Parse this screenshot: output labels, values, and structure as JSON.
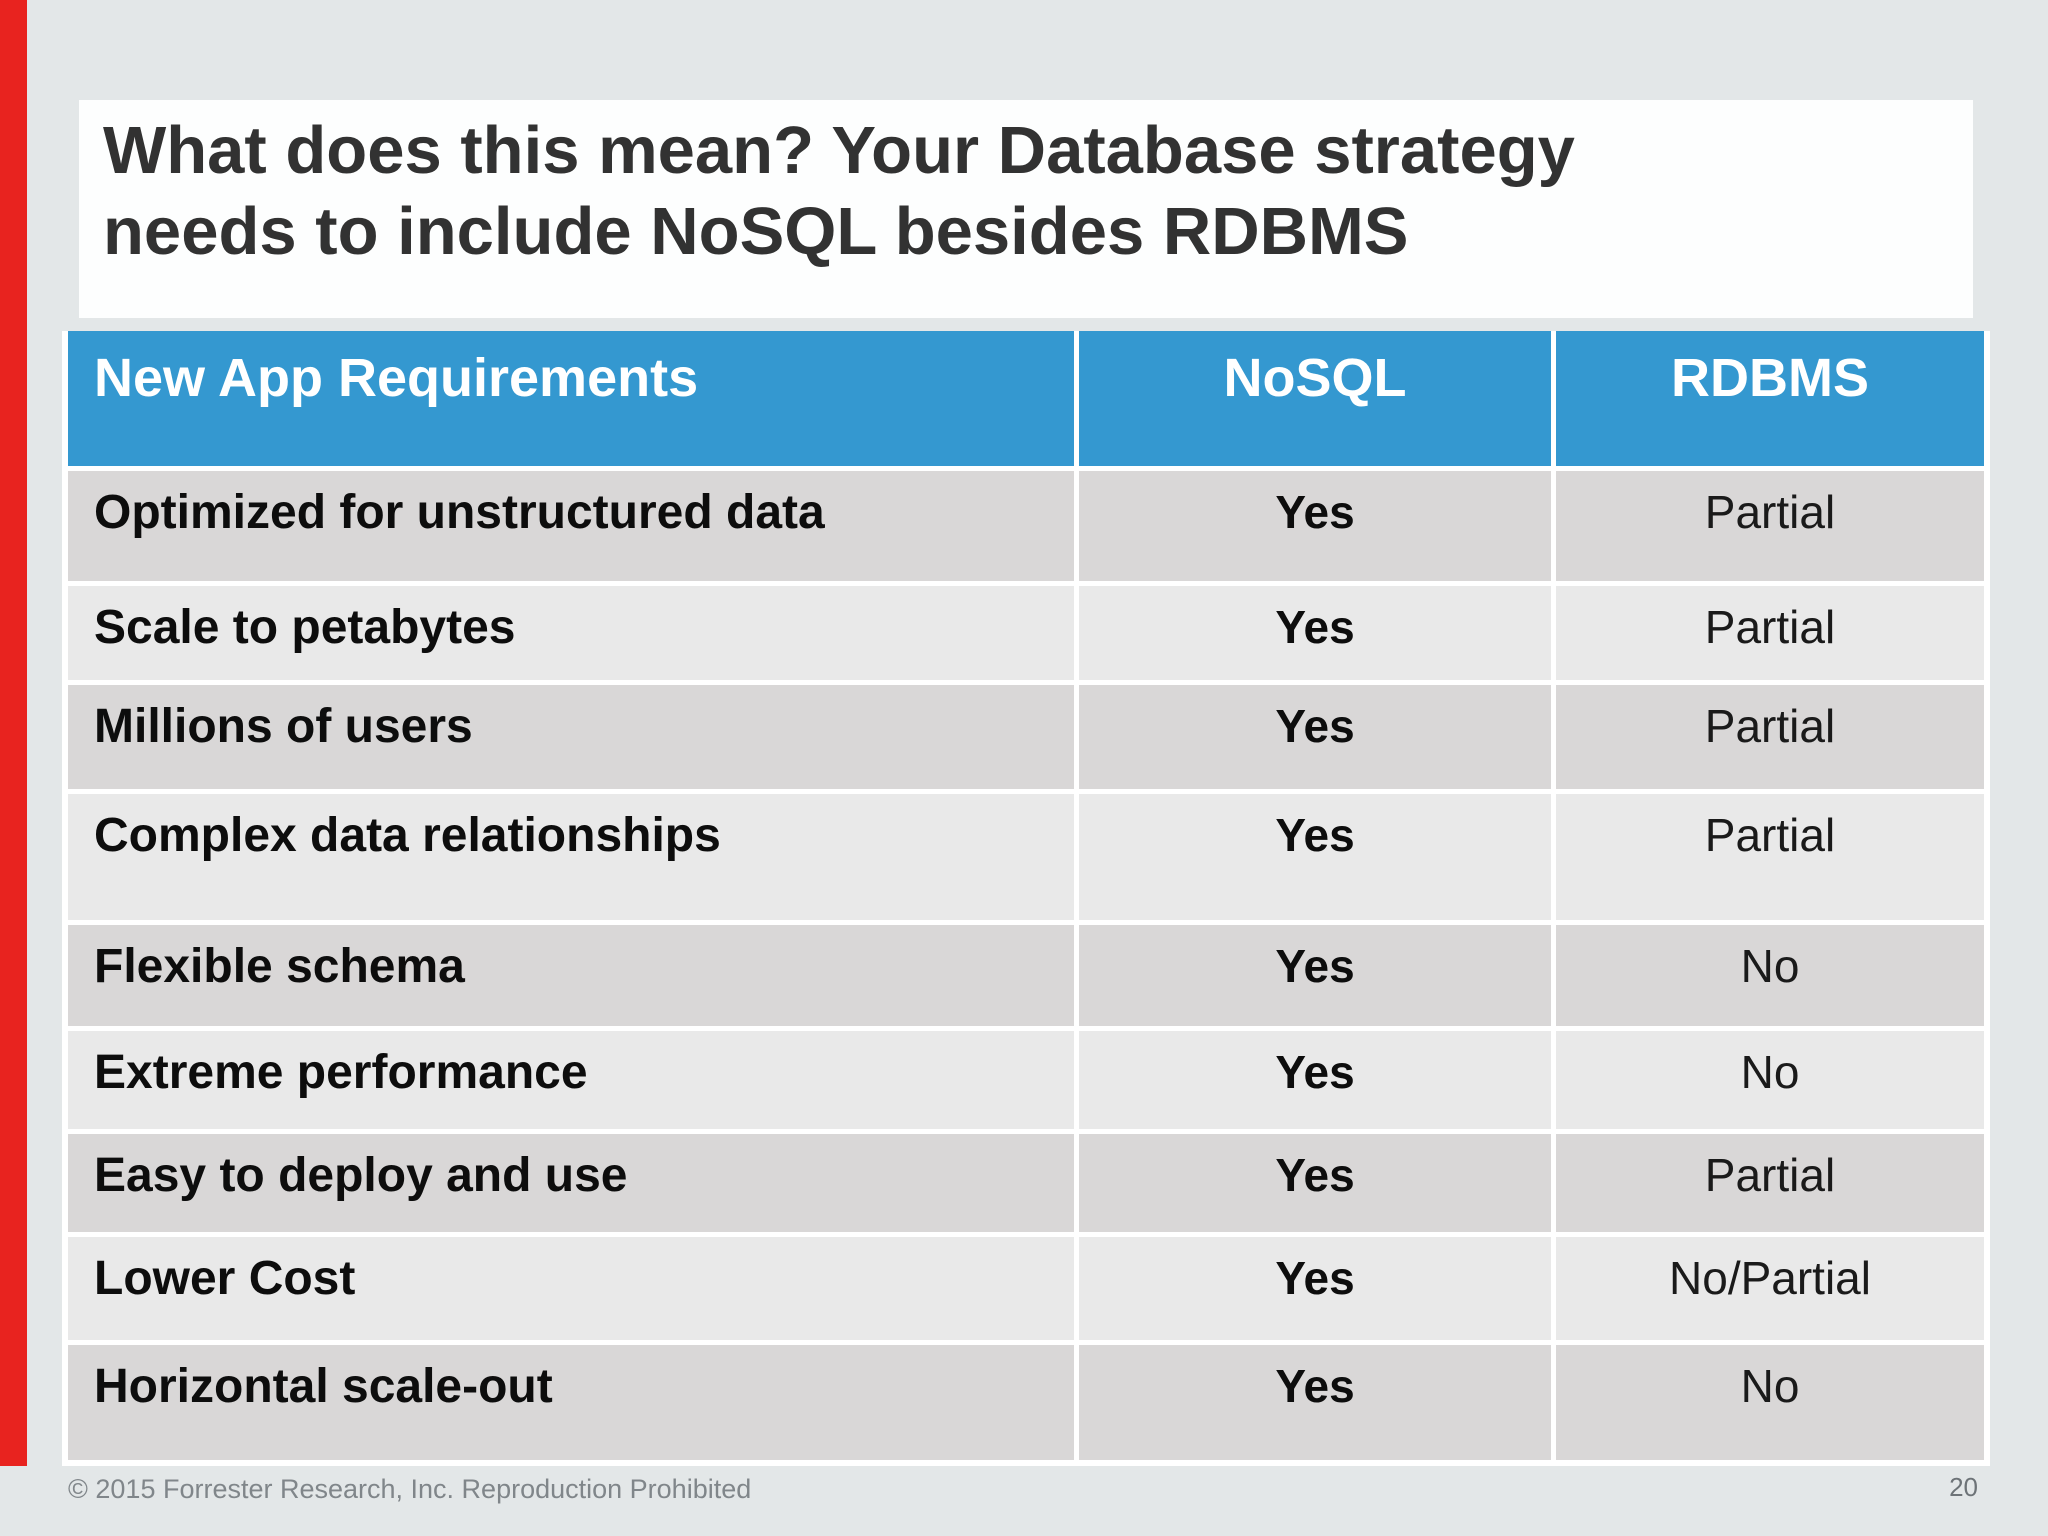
{
  "colors": {
    "page_background": "#e3e7e8",
    "accent_red": "#e8231f",
    "table_header_blue": "#3498d0",
    "row_dark_gray": "#d9d7d7",
    "row_light_gray": "#e9e9e9"
  },
  "title": {
    "lines": [
      "What does this mean? Your Database strategy",
      "needs to include NoSQL besides RDBMS"
    ]
  },
  "table": {
    "header": {
      "requirement": "New App Requirements",
      "nosql": "NoSQL",
      "rdbms": "RDBMS"
    },
    "rows": [
      {
        "requirement": "Optimized for unstructured data",
        "nosql": "Yes",
        "rdbms": "Partial"
      },
      {
        "requirement": "Scale to petabytes",
        "nosql": "Yes",
        "rdbms": "Partial"
      },
      {
        "requirement": "Millions of users",
        "nosql": "Yes",
        "rdbms": "Partial"
      },
      {
        "requirement": "Complex data relationships",
        "nosql": "Yes",
        "rdbms": "Partial"
      },
      {
        "requirement": "Flexible schema",
        "nosql": "Yes",
        "rdbms": "No"
      },
      {
        "requirement": "Extreme performance",
        "nosql": "Yes",
        "rdbms": "No"
      },
      {
        "requirement": "Easy to deploy and use",
        "nosql": "Yes",
        "rdbms": "Partial"
      },
      {
        "requirement": "Lower Cost",
        "nosql": "Yes",
        "rdbms": "No/Partial"
      },
      {
        "requirement": "Horizontal scale-out",
        "nosql": "Yes",
        "rdbms": "No"
      }
    ]
  },
  "footer": {
    "copyright": "© 2015 Forrester Research, Inc. Reproduction Prohibited",
    "page_number": "20"
  }
}
